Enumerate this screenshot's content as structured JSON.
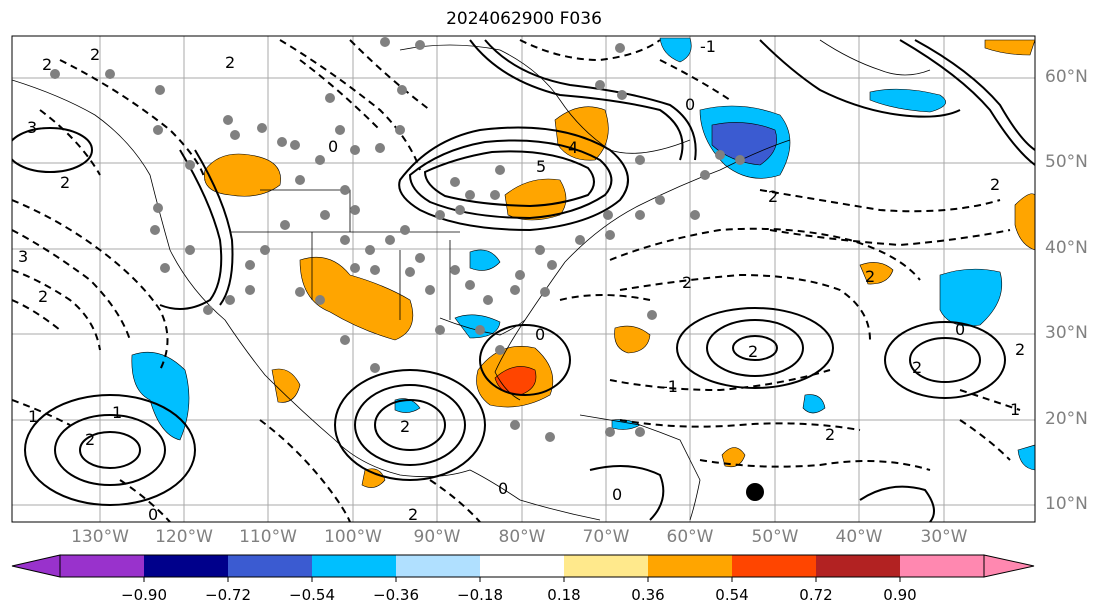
{
  "title": "2024062900 F036",
  "lat_labels": [
    "60°N",
    "50°N",
    "40°N",
    "30°N",
    "20°N",
    "10°N"
  ],
  "lon_labels": [
    "130°W",
    "120°W",
    "110°W",
    "100°W",
    "90°W",
    "80°W",
    "70°W",
    "60°W",
    "50°W",
    "40°W",
    "30°W"
  ],
  "colorbar": {
    "ticks": [
      "−0.90",
      "−0.72",
      "−0.54",
      "−0.36",
      "−0.18",
      "0.18",
      "0.36",
      "0.54",
      "0.72",
      "0.90"
    ],
    "colors": [
      "#9932cc",
      "#00008b",
      "#3b5bd1",
      "#00bfff",
      "#b0e0ff",
      "#ffffff",
      "#ffe98c",
      "#ffa500",
      "#ff4500",
      "#b22222",
      "#ff88b0"
    ]
  },
  "contour_labels": [
    "2",
    "-1",
    "0",
    "3",
    "2",
    "4",
    "5",
    "0",
    "2",
    "2",
    "-1",
    "2",
    "0",
    "2",
    "2",
    "2",
    "0",
    "2",
    "2",
    "1",
    "2",
    "0",
    "1",
    "2",
    "2",
    "2",
    "3",
    "2",
    "1",
    "0",
    "0",
    "2"
  ],
  "colors": {
    "warm_fill": "#ffa500",
    "strong_warm_fill": "#ff4500",
    "cool_fill": "#00bfff",
    "strong_cool_fill": "#3b5bd1",
    "station_dot": "#808080",
    "grid": "#a9a9a9",
    "coast": "#000000"
  },
  "icons": {
    "marker": "black-dot-marker"
  }
}
